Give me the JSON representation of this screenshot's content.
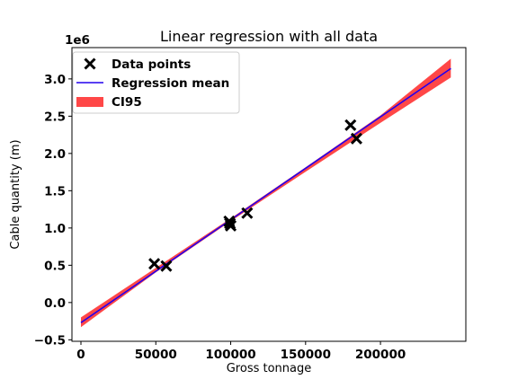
{
  "chart_data": {
    "type": "scatter",
    "title": "Linear regression with all data",
    "xlabel": "Gross tonnage",
    "ylabel": "Cable quantity (m)",
    "y_offset_label": "1e6",
    "xlim": [
      -6000,
      257000
    ],
    "ylim": [
      -0.52,
      3.42
    ],
    "xticks": [
      0,
      50000,
      100000,
      150000,
      200000
    ],
    "xtick_labels": [
      "0",
      "50000",
      "100000",
      "150000",
      "200000"
    ],
    "yticks": [
      -0.5,
      0.0,
      0.5,
      1.0,
      1.5,
      2.0,
      2.5,
      3.0
    ],
    "ytick_labels": [
      "−0.5",
      "0.0",
      "0.5",
      "1.0",
      "1.5",
      "2.0",
      "2.5",
      "3.0"
    ],
    "grid": false,
    "legend_position": "upper-left",
    "y_scale": 1000000,
    "data_points": [
      {
        "x": 49000,
        "y": 0.52
      },
      {
        "x": 57000,
        "y": 0.49
      },
      {
        "x": 99000,
        "y": 1.09
      },
      {
        "x": 100000,
        "y": 1.03
      },
      {
        "x": 99500,
        "y": 1.06
      },
      {
        "x": 111000,
        "y": 1.2
      },
      {
        "x": 180000,
        "y": 2.38
      },
      {
        "x": 184000,
        "y": 2.2
      }
    ],
    "regression_mean": {
      "x": [
        0,
        247000
      ],
      "y": [
        -0.27,
        3.14
      ]
    },
    "ci95": {
      "x": [
        0,
        50000,
        100000,
        150000,
        200000,
        247000
      ],
      "lower": [
        -0.33,
        0.405,
        1.09,
        1.755,
        2.41,
        3.02
      ],
      "upper": [
        -0.2,
        0.465,
        1.13,
        1.815,
        2.51,
        3.27
      ]
    },
    "legend": [
      {
        "label": "Data points",
        "marker": "x",
        "color": "#000000"
      },
      {
        "label": "Regression mean",
        "marker": "line",
        "color": "#2200ee"
      },
      {
        "label": "CI95",
        "marker": "patch",
        "color": "#ff3333"
      }
    ],
    "colors": {
      "points": "#000000",
      "mean": "#2200ee",
      "ci": "#ff3333"
    }
  }
}
